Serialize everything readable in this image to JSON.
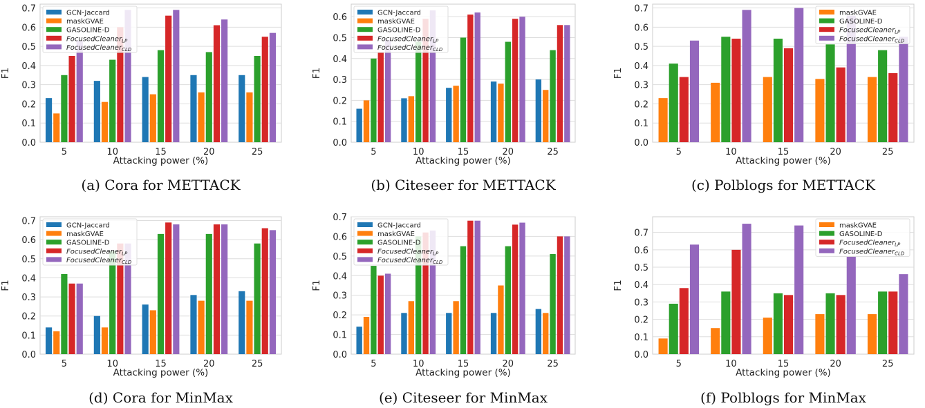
{
  "colors": {
    "GCN-Jaccard": "#1f77b4",
    "maskGVAE": "#ff7f0e",
    "GASOLINE-D": "#2ca02c",
    "FocusedCleanerLP": "#d62728",
    "FocusedCleanerCLD": "#9467bd"
  },
  "chart_data": [
    {
      "type": "bar",
      "caption": "(a) Cora for METTACK",
      "xlabel": "Attacking power (%)",
      "ylabel": "F1",
      "categories": [
        "5",
        "10",
        "15",
        "20",
        "25"
      ],
      "ylim": [
        0,
        0.72
      ],
      "yticks": [
        "0.0",
        "0.1",
        "0.2",
        "0.3",
        "0.4",
        "0.5",
        "0.6",
        "0.7"
      ],
      "grid": true,
      "legend_position": "top-left",
      "series": [
        {
          "name": "GCN-Jaccard",
          "key": "GCN-Jaccard",
          "values": [
            0.23,
            0.32,
            0.34,
            0.35,
            0.35
          ]
        },
        {
          "name": "maskGVAE",
          "key": "maskGVAE",
          "values": [
            0.15,
            0.21,
            0.25,
            0.26,
            0.26
          ]
        },
        {
          "name": "GASOLINE-D",
          "key": "GASOLINE-D",
          "values": [
            0.35,
            0.43,
            0.48,
            0.47,
            0.45
          ]
        },
        {
          "name": "FocusedCleaner",
          "sub": "LP",
          "key": "FocusedCleanerLP",
          "values": [
            0.45,
            0.6,
            0.66,
            0.61,
            0.55
          ]
        },
        {
          "name": "FocusedCleaner",
          "sub": "CLD",
          "key": "FocusedCleanerCLD",
          "values": [
            0.53,
            0.69,
            0.69,
            0.64,
            0.57
          ]
        }
      ]
    },
    {
      "type": "bar",
      "caption": "(b) Citeseer for METTACK",
      "xlabel": "Attacking power (%)",
      "ylabel": "F1",
      "categories": [
        "5",
        "10",
        "15",
        "20",
        "25"
      ],
      "ylim": [
        0,
        0.66
      ],
      "yticks": [
        "0.0",
        "0.1",
        "0.2",
        "0.3",
        "0.4",
        "0.5",
        "0.6"
      ],
      "grid": true,
      "legend_position": "top-left",
      "series": [
        {
          "name": "GCN-Jaccard",
          "key": "GCN-Jaccard",
          "values": [
            0.16,
            0.21,
            0.26,
            0.29,
            0.3
          ]
        },
        {
          "name": "maskGVAE",
          "key": "maskGVAE",
          "values": [
            0.2,
            0.22,
            0.27,
            0.28,
            0.25
          ]
        },
        {
          "name": "GASOLINE-D",
          "key": "GASOLINE-D",
          "values": [
            0.4,
            0.48,
            0.5,
            0.48,
            0.44
          ]
        },
        {
          "name": "FocusedCleaner",
          "sub": "LP",
          "key": "FocusedCleanerLP",
          "values": [
            0.43,
            0.59,
            0.61,
            0.59,
            0.56
          ]
        },
        {
          "name": "FocusedCleaner",
          "sub": "CLD",
          "key": "FocusedCleanerCLD",
          "values": [
            0.49,
            0.63,
            0.62,
            0.6,
            0.56
          ]
        }
      ]
    },
    {
      "type": "bar",
      "caption": "(c) Polblogs for METTACK",
      "xlabel": "Attacking power (%)",
      "ylabel": "F1",
      "categories": [
        "5",
        "10",
        "15",
        "20",
        "25"
      ],
      "ylim": [
        0,
        0.72
      ],
      "yticks": [
        "0.0",
        "0.1",
        "0.2",
        "0.3",
        "0.4",
        "0.5",
        "0.6",
        "0.7"
      ],
      "grid": true,
      "legend_position": "top-right",
      "series": [
        {
          "name": "maskGVAE",
          "key": "maskGVAE",
          "values": [
            0.23,
            0.31,
            0.34,
            0.33,
            0.34
          ]
        },
        {
          "name": "GASOLINE-D",
          "key": "GASOLINE-D",
          "values": [
            0.41,
            0.55,
            0.54,
            0.51,
            0.48
          ]
        },
        {
          "name": "FocusedCleaner",
          "sub": "LP",
          "key": "FocusedCleanerLP",
          "values": [
            0.34,
            0.54,
            0.49,
            0.39,
            0.36
          ]
        },
        {
          "name": "FocusedCleaner",
          "sub": "CLD",
          "key": "FocusedCleanerCLD",
          "values": [
            0.53,
            0.69,
            0.7,
            0.66,
            0.55
          ]
        }
      ]
    },
    {
      "type": "bar",
      "caption": "(d) Cora for MinMax",
      "xlabel": "Attacking power (%)",
      "ylabel": "F1",
      "categories": [
        "5",
        "10",
        "15",
        "20",
        "25"
      ],
      "ylim": [
        0,
        0.72
      ],
      "yticks": [
        "0.0",
        "0.1",
        "0.2",
        "0.3",
        "0.4",
        "0.5",
        "0.6",
        "0.7"
      ],
      "grid": true,
      "legend_position": "top-left",
      "series": [
        {
          "name": "GCN-Jaccard",
          "key": "GCN-Jaccard",
          "values": [
            0.14,
            0.2,
            0.26,
            0.31,
            0.33
          ]
        },
        {
          "name": "maskGVAE",
          "key": "maskGVAE",
          "values": [
            0.12,
            0.14,
            0.23,
            0.28,
            0.28
          ]
        },
        {
          "name": "GASOLINE-D",
          "key": "GASOLINE-D",
          "values": [
            0.42,
            0.54,
            0.63,
            0.63,
            0.58
          ]
        },
        {
          "name": "FocusedCleaner",
          "sub": "LP",
          "key": "FocusedCleanerLP",
          "values": [
            0.37,
            0.58,
            0.69,
            0.68,
            0.66
          ]
        },
        {
          "name": "FocusedCleaner",
          "sub": "CLD",
          "key": "FocusedCleanerCLD",
          "values": [
            0.37,
            0.58,
            0.68,
            0.68,
            0.65
          ]
        }
      ]
    },
    {
      "type": "bar",
      "caption": "(e) Citeseer for MinMax",
      "xlabel": "Attacking power (%)",
      "ylabel": "F1",
      "categories": [
        "5",
        "10",
        "15",
        "20",
        "25"
      ],
      "ylim": [
        0,
        0.7
      ],
      "yticks": [
        "0.0",
        "0.1",
        "0.2",
        "0.3",
        "0.4",
        "0.5",
        "0.6",
        "0.7"
      ],
      "grid": true,
      "legend_position": "top-left",
      "series": [
        {
          "name": "GCN-Jaccard",
          "key": "GCN-Jaccard",
          "values": [
            0.14,
            0.21,
            0.21,
            0.21,
            0.23
          ]
        },
        {
          "name": "maskGVAE",
          "key": "maskGVAE",
          "values": [
            0.19,
            0.27,
            0.27,
            0.35,
            0.21
          ]
        },
        {
          "name": "GASOLINE-D",
          "key": "GASOLINE-D",
          "values": [
            0.45,
            0.6,
            0.55,
            0.55,
            0.51
          ]
        },
        {
          "name": "FocusedCleaner",
          "sub": "LP",
          "key": "FocusedCleanerLP",
          "values": [
            0.4,
            0.62,
            0.68,
            0.66,
            0.6
          ]
        },
        {
          "name": "FocusedCleaner",
          "sub": "CLD",
          "key": "FocusedCleanerCLD",
          "values": [
            0.41,
            0.63,
            0.68,
            0.67,
            0.6
          ]
        }
      ]
    },
    {
      "type": "bar",
      "caption": "(f) Polblogs for MinMax",
      "xlabel": "Attacking power (%)",
      "ylabel": "F1",
      "categories": [
        "5",
        "10",
        "15",
        "20",
        "25"
      ],
      "ylim": [
        0,
        0.79
      ],
      "yticks": [
        "0.0",
        "0.1",
        "0.2",
        "0.3",
        "0.4",
        "0.5",
        "0.6",
        "0.7"
      ],
      "grid": true,
      "legend_position": "top-right",
      "series": [
        {
          "name": "maskGVAE",
          "key": "maskGVAE",
          "values": [
            0.09,
            0.15,
            0.21,
            0.23,
            0.23
          ]
        },
        {
          "name": "GASOLINE-D",
          "key": "GASOLINE-D",
          "values": [
            0.29,
            0.36,
            0.35,
            0.35,
            0.36
          ]
        },
        {
          "name": "FocusedCleaner",
          "sub": "LP",
          "key": "FocusedCleanerLP",
          "values": [
            0.38,
            0.6,
            0.34,
            0.34,
            0.36
          ]
        },
        {
          "name": "FocusedCleaner",
          "sub": "CLD",
          "key": "FocusedCleanerCLD",
          "values": [
            0.63,
            0.75,
            0.74,
            0.56,
            0.46
          ]
        }
      ]
    }
  ]
}
